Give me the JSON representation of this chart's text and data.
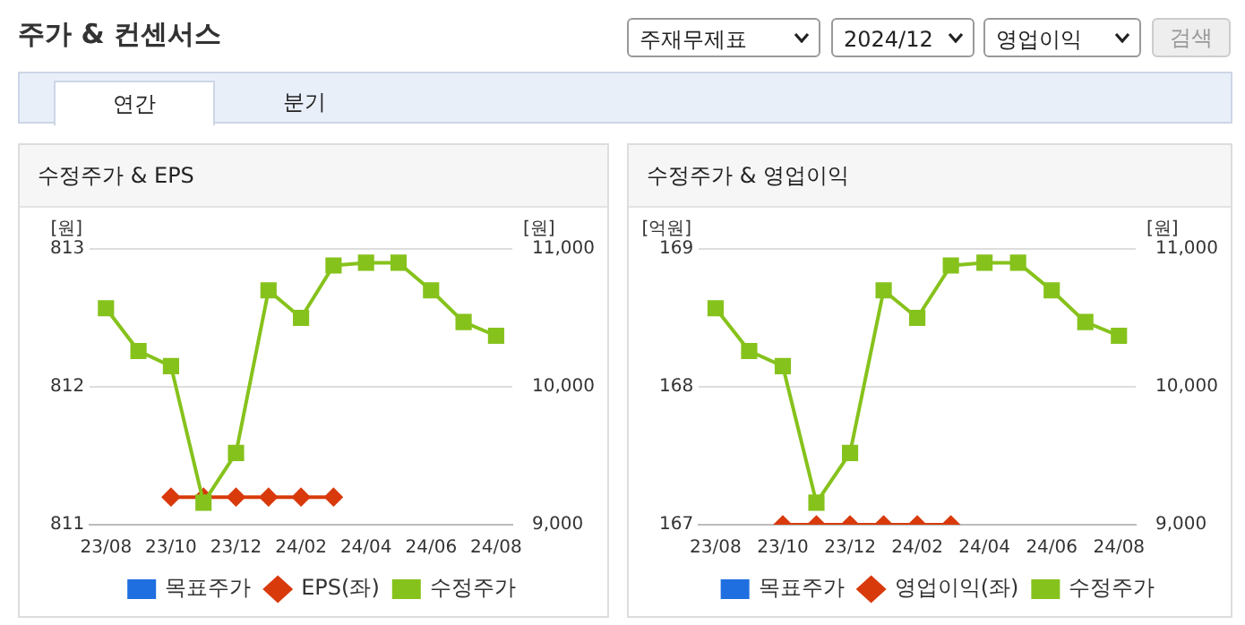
{
  "chart_data": [
    {
      "type": "line",
      "title": "수정주가 & EPS",
      "ylabel": "[원]",
      "y2label": "[원]",
      "annotations": [
        "주가 & 컨센서스",
        "주재무제표",
        "2024/12",
        "영업이익",
        "검색",
        "연간",
        "분기"
      ],
      "categories": [
        "23/08",
        null,
        "23/10",
        null,
        "23/12",
        null,
        "24/02",
        null,
        "24/04",
        null,
        "24/06",
        null,
        "24/08"
      ],
      "series": [
        {
          "name": "목표주가",
          "color": "#1f6fe0",
          "marker": "square",
          "values": [
            null,
            null,
            null,
            null,
            null,
            null,
            null,
            null,
            null,
            null,
            null,
            null,
            null
          ]
        },
        {
          "name": "EPS(좌)",
          "color": "#d83a0c",
          "marker": "diamond",
          "values": [
            null,
            null,
            811.2,
            811.2,
            811.2,
            811.2,
            811.2,
            811.2,
            null,
            null,
            null,
            null,
            null
          ]
        },
        {
          "name": "수정주가",
          "color": "#86c21c",
          "marker": "square",
          "axis": "y2",
          "values": [
            10570,
            10260,
            10150,
            9160,
            9520,
            10700,
            10500,
            10880,
            10900,
            10900,
            10700,
            10470,
            10370
          ]
        }
      ],
      "ylim": [
        811,
        813
      ],
      "yticks": [
        811,
        812,
        813
      ],
      "y2lim": [
        9000,
        11000
      ],
      "y2ticks": [
        {
          "value": 9000,
          "label": "9,000"
        },
        {
          "value": 10000,
          "label": "10,000"
        },
        {
          "value": 11000,
          "label": "11,000"
        }
      ],
      "grid": "y",
      "legend": "bottom"
    },
    {
      "type": "line",
      "title": "수정주가 & 영업이익",
      "ylabel": "[억원]",
      "y2label": "[원]",
      "categories": [
        "23/08",
        null,
        "23/10",
        null,
        "23/12",
        null,
        "24/02",
        null,
        "24/04",
        null,
        "24/06",
        null,
        "24/08"
      ],
      "series": [
        {
          "name": "목표주가",
          "color": "#1f6fe0",
          "marker": "square",
          "values": [
            null,
            null,
            null,
            null,
            null,
            null,
            null,
            null,
            null,
            null,
            null,
            null,
            null
          ]
        },
        {
          "name": "영업이익(좌)",
          "color": "#d83a0c",
          "marker": "diamond",
          "values": [
            null,
            null,
            167,
            167,
            167,
            167,
            167,
            167,
            null,
            null,
            null,
            null,
            null
          ]
        },
        {
          "name": "수정주가",
          "color": "#86c21c",
          "marker": "square",
          "axis": "y2",
          "values": [
            10570,
            10260,
            10150,
            9160,
            9520,
            10700,
            10500,
            10880,
            10900,
            10900,
            10700,
            10470,
            10370
          ]
        }
      ],
      "ylim": [
        167,
        169
      ],
      "yticks": [
        167,
        168,
        169
      ],
      "y2lim": [
        9000,
        11000
      ],
      "y2ticks": [
        {
          "value": 9000,
          "label": "9,000"
        },
        {
          "value": 10000,
          "label": "10,000"
        },
        {
          "value": 11000,
          "label": "11,000"
        }
      ],
      "grid": "y",
      "legend": "bottom"
    }
  ]
}
